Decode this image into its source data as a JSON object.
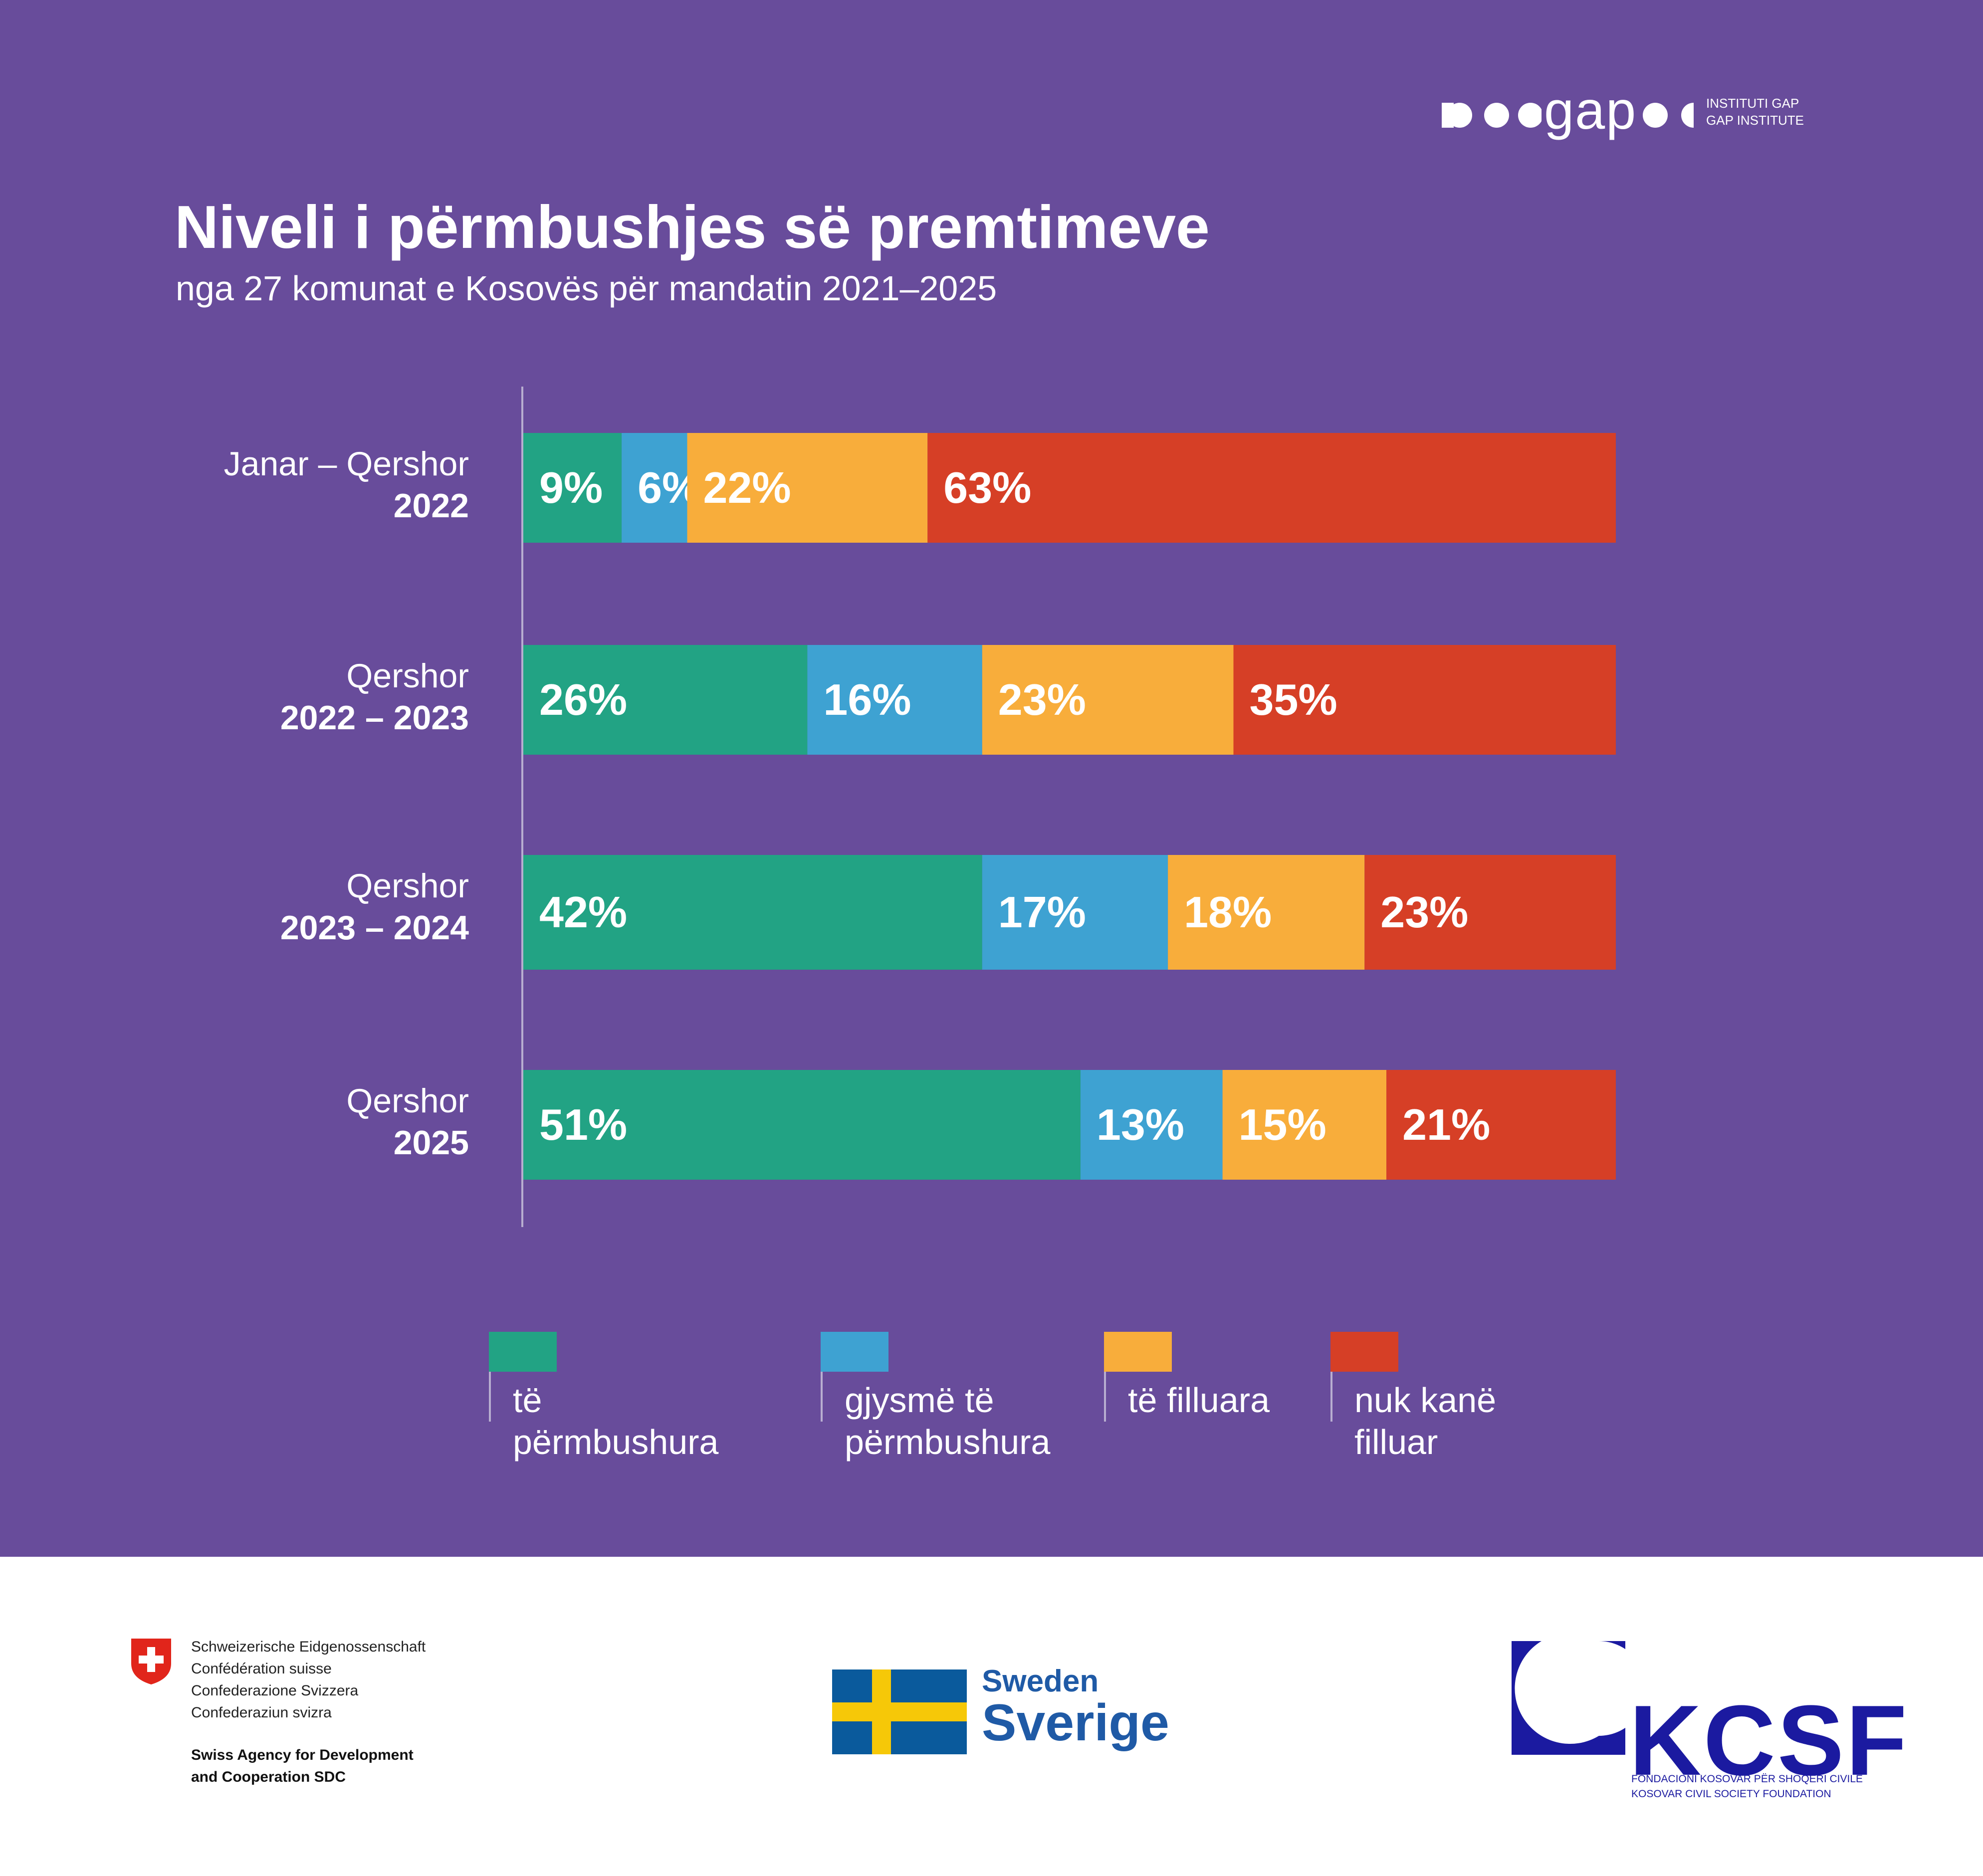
{
  "brand": {
    "gap_wordmark": "gap",
    "gap_subtitle": "INSTITUTI GAP\nGAP INSTITUTE"
  },
  "title": "Niveli i përmbushjes së premtimeve",
  "subtitle": "nga 27 komunat e Kosovës për mandatin 2021–2025",
  "chart_data": {
    "type": "bar",
    "orientation": "horizontal",
    "stacked": true,
    "normalized_100": true,
    "categories": [
      {
        "line1": "Janar – Qershor",
        "line2": "2022"
      },
      {
        "line1": "Qershor",
        "line2": "2022 – 2023"
      },
      {
        "line1": "Qershor",
        "line2": "2023 – 2024"
      },
      {
        "line1": "Qershor",
        "line2": "2025"
      }
    ],
    "series": [
      {
        "name": "të përmbushura",
        "color": "#22a384",
        "values": [
          9,
          26,
          42,
          51
        ]
      },
      {
        "name": "gjysmë të përmbushura",
        "color": "#3ea2d2",
        "values": [
          6,
          16,
          17,
          13
        ]
      },
      {
        "name": "të filluara",
        "color": "#f8ad3b",
        "values": [
          22,
          23,
          18,
          15
        ]
      },
      {
        "name": "nuk kanë filluar",
        "color": "#d63f26",
        "values": [
          63,
          35,
          23,
          21
        ]
      }
    ],
    "value_suffix": "%",
    "legend_position": "bottom",
    "grid": false
  },
  "legend": [
    {
      "text": "të përmbushura",
      "color": "#22a384"
    },
    {
      "text": "gjysmë të përmbushura",
      "color": "#3ea2d2"
    },
    {
      "text": "të filluara",
      "color": "#f8ad3b"
    },
    {
      "text": "nuk kanë filluar",
      "color": "#d63f26"
    }
  ],
  "footer": {
    "swiss": {
      "lines": "Schweizerische Eidgenossenschaft\nConfédération suisse\nConfederazione Svizzera\nConfederaziun svizra",
      "agency": "Swiss Agency for Development\nand Cooperation SDC"
    },
    "sweden": {
      "line1": "Sweden",
      "line2": "Sverige"
    },
    "kcsf": {
      "name": "KCSF",
      "sub": "FONDACIONI KOSOVAR PËR SHOQËRI CIVILE\nKOSOVAR CIVIL SOCIETY FOUNDATION"
    }
  }
}
